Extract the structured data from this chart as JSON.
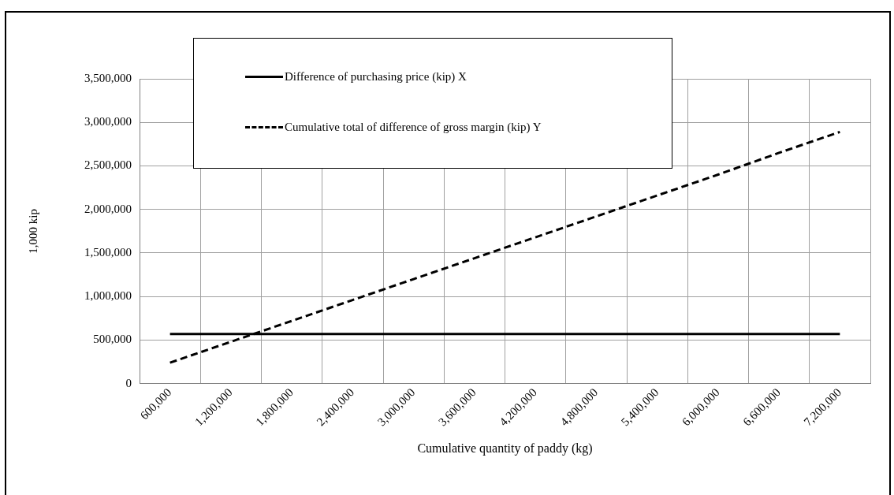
{
  "chart_data": {
    "type": "line",
    "xlabel": "Cumulative quantity of paddy (kg)",
    "ylabel": "1,000 kip",
    "categories": [
      "600,000",
      "1,200,000",
      "1,800,000",
      "2,400,000",
      "3,000,000",
      "3,600,000",
      "4,200,000",
      "4,800,000",
      "5,400,000",
      "6,000,000",
      "6,600,000",
      "7,200,000"
    ],
    "series": [
      {
        "name": "Difference of purchasing price (kip) X",
        "color": "#000000",
        "line_style": "solid",
        "values": [
          570000,
          570000,
          570000,
          570000,
          570000,
          570000,
          570000,
          570000,
          570000,
          570000,
          570000,
          570000
        ]
      },
      {
        "name": "Cumulative total of difference of gross margin (kip) Y",
        "color": "#000000",
        "line_style": "dashed",
        "values": [
          240000,
          480000,
          720000,
          960000,
          1200000,
          1440000,
          1680000,
          1920000,
          2160000,
          2400000,
          2650000,
          2890000
        ]
      }
    ],
    "ylim": [
      0,
      3500000
    ],
    "yticks": [
      0,
      {
        "value": 500000,
        "label": "500,000"
      },
      {
        "value": 1000000,
        "label": "1,000,000"
      },
      {
        "value": 1500000,
        "label": "1,500,000"
      },
      {
        "value": 2000000,
        "label": "2,000,000"
      },
      {
        "value": 2500000,
        "label": "2,500,000"
      },
      {
        "value": 3000000,
        "label": "3,000,000"
      },
      {
        "value": 3500000,
        "label": "3,500,000"
      }
    ],
    "grid": true,
    "legend": "top left",
    "marker": "none"
  }
}
